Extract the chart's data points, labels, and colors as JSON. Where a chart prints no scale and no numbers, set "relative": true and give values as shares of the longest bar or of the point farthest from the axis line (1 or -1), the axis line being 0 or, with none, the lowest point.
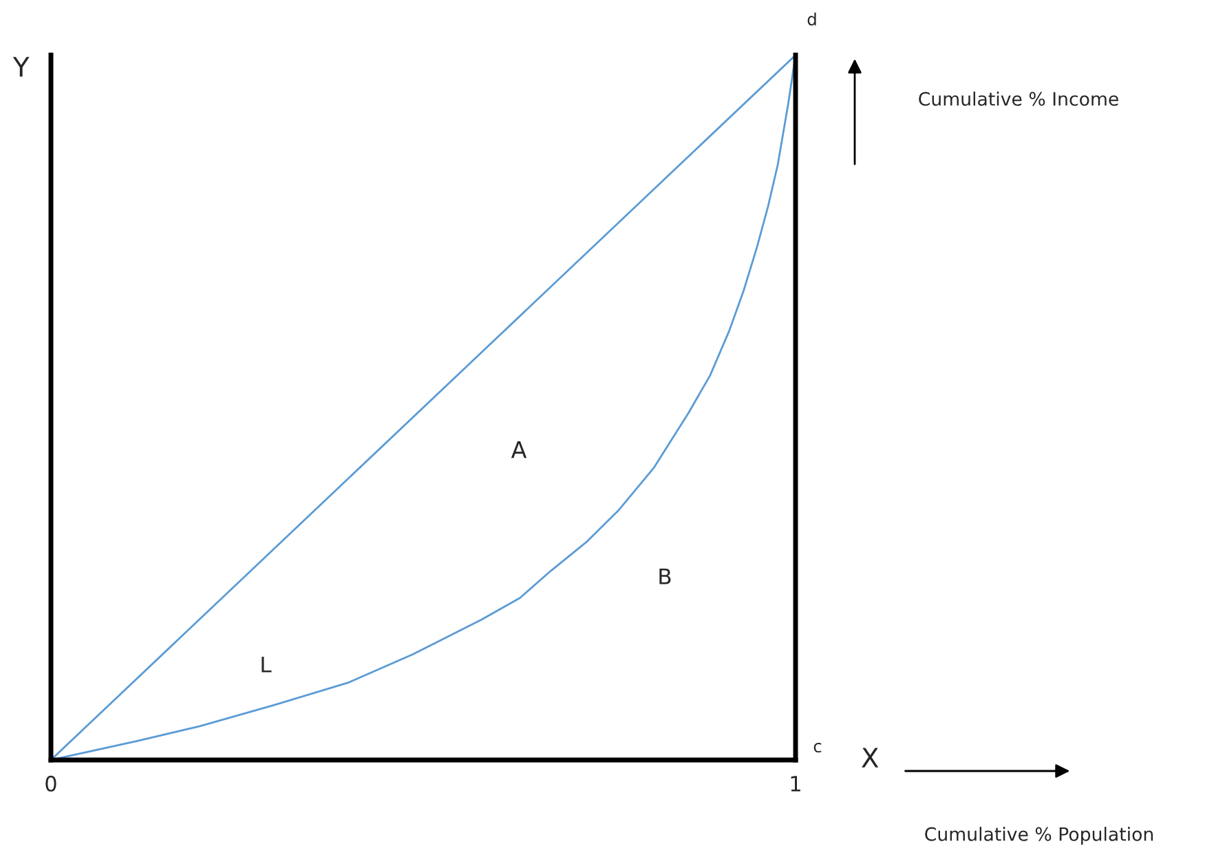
{
  "chart_data": {
    "type": "line",
    "relative": true,
    "xlabel": "X",
    "ylabel": "Y",
    "xlim": [
      0,
      1
    ],
    "xticks": [
      0,
      1
    ],
    "legend": false,
    "tick_labels": "x",
    "series": [
      {
        "color": "#5b9bd5",
        "x": [
          0,
          1
        ],
        "values": [
          0,
          1
        ]
      },
      {
        "color": "#5b9bd5",
        "x": [
          0,
          0.116,
          0.2,
          0.3,
          0.4,
          0.486,
          0.578,
          0.63,
          0.671,
          0.72,
          0.763,
          0.81,
          0.856,
          0.885,
          0.911,
          0.93,
          0.948,
          0.963,
          0.976,
          0.99,
          1
        ],
        "values": [
          0,
          0.027,
          0.048,
          0.078,
          0.11,
          0.15,
          0.199,
          0.23,
          0.268,
          0.31,
          0.355,
          0.415,
          0.492,
          0.545,
          0.609,
          0.665,
          0.727,
          0.785,
          0.844,
          0.93,
          1
        ]
      }
    ],
    "annotations": [
      "A",
      "B",
      "L",
      "c",
      "d",
      "Cumulative % Income",
      "Cumulative % Population"
    ]
  }
}
